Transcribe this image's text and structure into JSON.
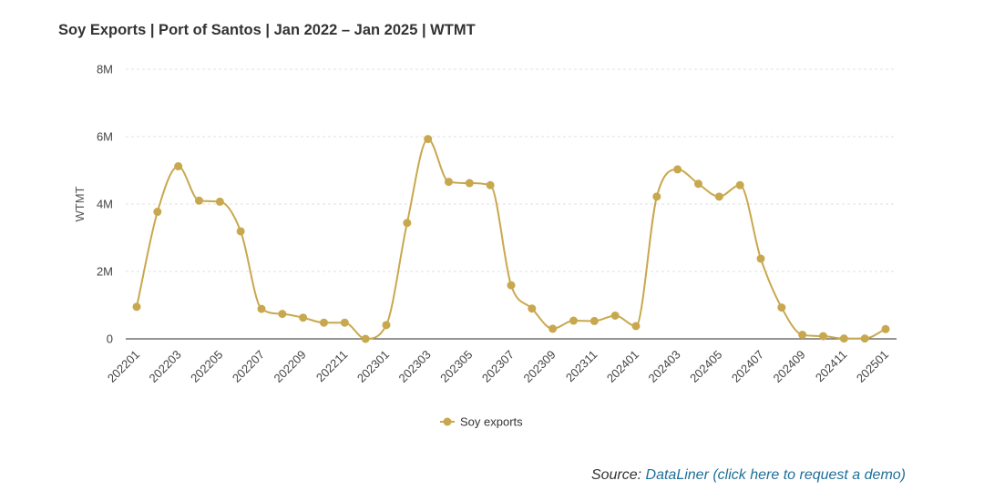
{
  "chart_data": {
    "type": "line",
    "title": "Soy Exports | Port of Santos | Jan 2022 – Jan 2025 | WTMT",
    "ylabel": "WTMT",
    "xlabel": "",
    "ylim": [
      0,
      8000000
    ],
    "yticks": [
      0,
      2000000,
      4000000,
      6000000,
      8000000
    ],
    "ytick_labels": [
      "0",
      "2M",
      "4M",
      "6M",
      "8M"
    ],
    "x": [
      "202201",
      "202202",
      "202203",
      "202204",
      "202205",
      "202206",
      "202207",
      "202208",
      "202209",
      "202210",
      "202211",
      "202212",
      "202301",
      "202302",
      "202303",
      "202304",
      "202305",
      "202306",
      "202307",
      "202308",
      "202309",
      "202310",
      "202311",
      "202312",
      "202401",
      "202402",
      "202403",
      "202404",
      "202405",
      "202406",
      "202407",
      "202408",
      "202409",
      "202410",
      "202411",
      "202412",
      "202501"
    ],
    "xtick_labels": [
      "202201",
      "202203",
      "202205",
      "202207",
      "202209",
      "202211",
      "202301",
      "202303",
      "202305",
      "202307",
      "202309",
      "202311",
      "202401",
      "202403",
      "202405",
      "202407",
      "202409",
      "202411",
      "202501"
    ],
    "series": [
      {
        "name": "Soy exports",
        "color": "#c8a84e",
        "values": [
          950000,
          3770000,
          5120000,
          4100000,
          4070000,
          3190000,
          890000,
          740000,
          630000,
          480000,
          480000,
          0,
          410000,
          3440000,
          5930000,
          4660000,
          4620000,
          4560000,
          1590000,
          900000,
          300000,
          540000,
          530000,
          690000,
          380000,
          4220000,
          5030000,
          4600000,
          4220000,
          4560000,
          2380000,
          930000,
          120000,
          80000,
          10000,
          10000,
          290000
        ]
      }
    ],
    "grid": true,
    "legend_position": "bottom"
  },
  "source": {
    "prefix": "Source: ",
    "link_text": "DataLiner (click here to request a demo)"
  }
}
